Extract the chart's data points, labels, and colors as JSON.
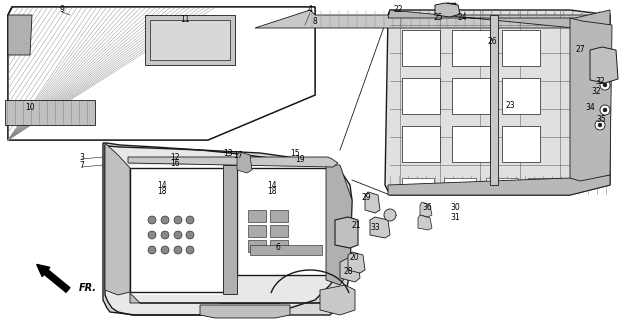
{
  "bg_color": "#ffffff",
  "line_color": "#1a1a1a",
  "figsize": [
    6.4,
    3.19
  ],
  "dpi": 100,
  "label_fontsize": 5.5,
  "fr_label": "FR.",
  "hatch_color": "#aaaaaa",
  "gray_fill": "#d0d0d0",
  "light_gray": "#e8e8e8",
  "mid_gray": "#b0b0b0"
}
